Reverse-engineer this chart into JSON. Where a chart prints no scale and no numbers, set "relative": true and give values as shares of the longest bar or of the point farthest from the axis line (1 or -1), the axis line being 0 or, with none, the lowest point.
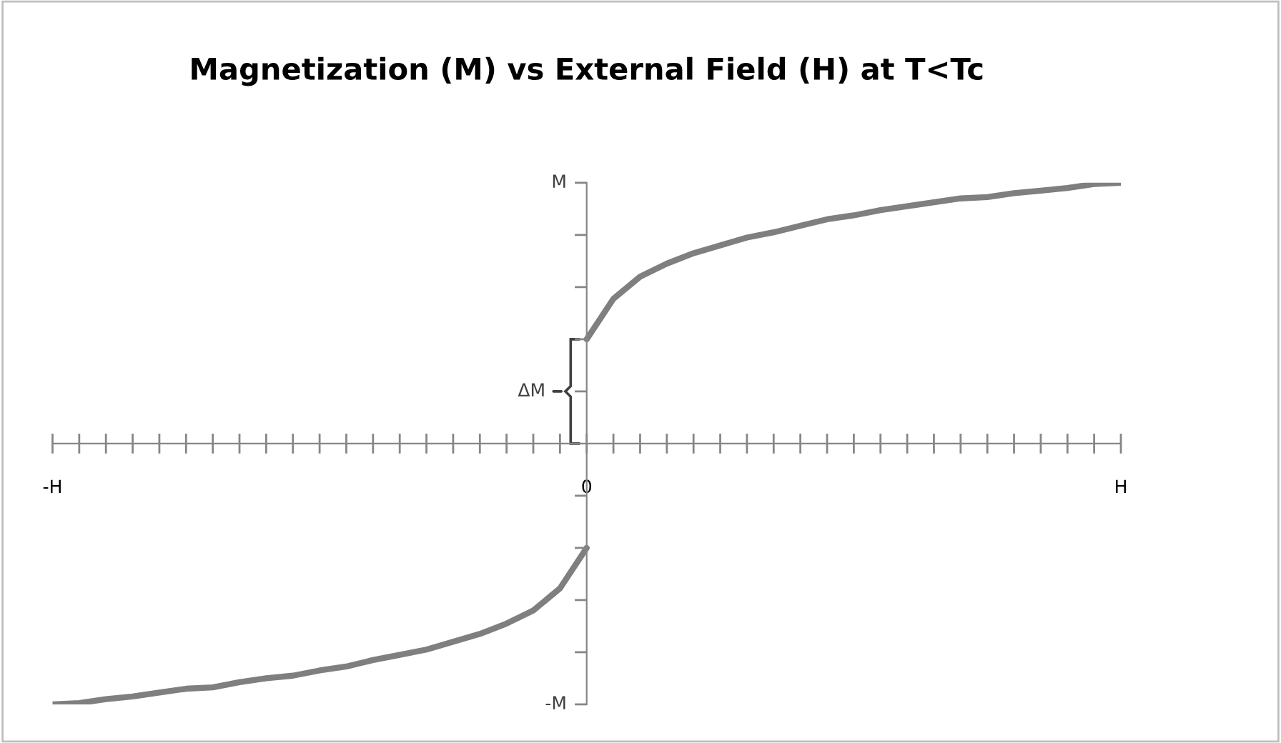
{
  "chart_data": {
    "type": "line",
    "title": "Magnetization (M) vs External Field (H) at T<Tc",
    "categories": [
      "-H",
      null,
      null,
      null,
      null,
      null,
      null,
      null,
      null,
      null,
      null,
      null,
      null,
      null,
      null,
      null,
      null,
      null,
      null,
      null,
      "0",
      null,
      null,
      null,
      null,
      null,
      null,
      null,
      null,
      null,
      null,
      null,
      null,
      null,
      null,
      null,
      null,
      null,
      null,
      null,
      "H"
    ],
    "relative": true,
    "series": [
      {
        "color": "#7f7f7f",
        "values": [
          -1.0,
          -0.995,
          -0.98,
          -0.97,
          -0.955,
          -0.94,
          -0.935,
          -0.915,
          -0.9,
          -0.89,
          -0.87,
          -0.855,
          -0.83,
          -0.81,
          -0.79,
          -0.76,
          -0.73,
          -0.69,
          -0.64,
          -0.555,
          -0.4,
          null,
          null,
          null,
          null,
          null,
          null,
          null,
          null,
          null,
          null,
          null,
          null,
          null,
          null,
          null,
          null,
          null,
          null,
          null,
          null
        ]
      },
      {
        "color": "#7f7f7f",
        "values": [
          null,
          null,
          null,
          null,
          null,
          null,
          null,
          null,
          null,
          null,
          null,
          null,
          null,
          null,
          null,
          null,
          null,
          null,
          null,
          null,
          0.4,
          0.555,
          0.64,
          0.69,
          0.73,
          0.76,
          0.79,
          0.81,
          0.835,
          0.86,
          0.875,
          0.895,
          0.91,
          0.925,
          0.94,
          0.945,
          0.96,
          0.97,
          0.98,
          0.995,
          1.0
        ]
      }
    ],
    "annotations": [
      "ΔM",
      "M",
      "-M"
    ],
    "marker": "none",
    "line_style": "solid"
  }
}
